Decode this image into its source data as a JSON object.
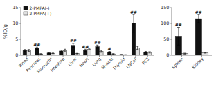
{
  "chart_data": [
    {
      "type": "bar",
      "ylabel": "%ID/g",
      "categories": [
        "Blood",
        "Pancreas",
        "Stomach*",
        "Intestine",
        "Liver",
        "Heart",
        "Lung",
        "Muscle",
        "Thyroid",
        "LNCaP",
        "PC3"
      ],
      "series": [
        {
          "name": "2-PMPA(-)",
          "color": "#111111",
          "values": [
            1.5,
            2.2,
            0.7,
            1.3,
            3.1,
            1.5,
            2.7,
            1.0,
            0.2,
            10.0,
            1.0
          ],
          "errors": [
            0.3,
            0.35,
            0.15,
            0.3,
            0.6,
            0.4,
            0.5,
            0.2,
            0.05,
            2.8,
            0.2
          ],
          "annotations": [
            null,
            "##",
            null,
            null,
            "##",
            "##",
            "##",
            "#",
            null,
            "##",
            null
          ]
        },
        {
          "name": "2-PMPA(+)",
          "color": "#e0e0e0",
          "values": [
            1.5,
            0.4,
            0.6,
            1.5,
            0.5,
            1.9,
            1.2,
            0.4,
            0.15,
            2.3,
            0.9
          ],
          "errors": [
            0.3,
            0.1,
            0.1,
            0.4,
            0.1,
            0.25,
            0.3,
            0.1,
            0.04,
            0.5,
            0.2
          ]
        }
      ],
      "ylim": [
        0,
        15
      ],
      "yticks": [
        0,
        5,
        10,
        15
      ],
      "legend": "upper left"
    },
    {
      "type": "bar",
      "categories": [
        "Spleen",
        "Kidney"
      ],
      "series": [
        {
          "color": "#111111",
          "values": [
            60.0,
            115.0
          ],
          "errors": [
            28.0,
            13.0
          ],
          "annotations": [
            "##",
            "##"
          ]
        },
        {
          "color": "#e0e0e0",
          "values": [
            5.0,
            8.0
          ],
          "errors": [
            1.5,
            1.5
          ]
        }
      ],
      "ylim": [
        0,
        150
      ],
      "yticks": [
        0,
        50,
        100,
        150
      ]
    }
  ]
}
